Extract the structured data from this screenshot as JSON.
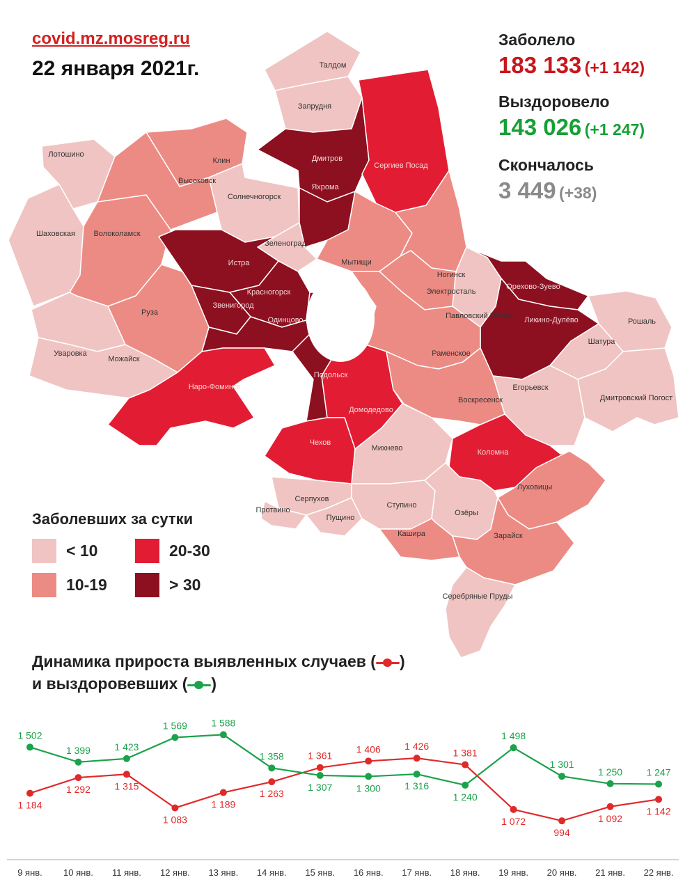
{
  "header": {
    "site": "covid.mz.mosreg.ru",
    "date": "22 января 2021г."
  },
  "stats": {
    "infected": {
      "label": "Заболело",
      "value": "183 133",
      "delta": "(+1 142)",
      "color": "#c8161d"
    },
    "recovered": {
      "label": "Выздоровело",
      "value": "143 026",
      "delta": "(+1 247)",
      "color": "#16a036"
    },
    "deaths": {
      "label": "Скончалось",
      "value": "3 449",
      "delta": "(+38)",
      "color": "#8a8a8a"
    }
  },
  "legend": {
    "title": "Заболевших за сутки",
    "items": [
      {
        "label": "< 10",
        "color": "#f0c4c2"
      },
      {
        "label": "10-19",
        "color": "#ec8b84"
      },
      {
        "label": "20-30",
        "color": "#e21d33"
      },
      {
        "label": "> 30",
        "color": "#8c1020"
      }
    ]
  },
  "map": {
    "colors": {
      "c1": "#f0c4c2",
      "c2": "#ec8b84",
      "c3": "#e21d33",
      "c4": "#8c1020"
    },
    "districts": [
      {
        "name": "Лотошино",
        "class": "c1"
      },
      {
        "name": "Шаховская",
        "class": "c1"
      },
      {
        "name": "Волоколамск",
        "class": "c2"
      },
      {
        "name": "Клин",
        "class": "c2"
      },
      {
        "name": "Высоковск",
        "class": "c2"
      },
      {
        "name": "Солнечногорск",
        "class": "c1"
      },
      {
        "name": "Талдом",
        "class": "c1"
      },
      {
        "name": "Запрудня",
        "class": "c1"
      },
      {
        "name": "Дмитров",
        "class": "c4"
      },
      {
        "name": "Яхрома",
        "class": "c4"
      },
      {
        "name": "Сергиев Посад",
        "class": "c3"
      },
      {
        "name": "Зеленоград",
        "class": "c1"
      },
      {
        "name": "Истра",
        "class": "c4"
      },
      {
        "name": "Красногорск",
        "class": "c4"
      },
      {
        "name": "Звенигород",
        "class": "c4"
      },
      {
        "name": "Одинцово",
        "class": "c4"
      },
      {
        "name": "Руза",
        "class": "c2"
      },
      {
        "name": "Уваровка",
        "class": "c1"
      },
      {
        "name": "Можайск",
        "class": "c1"
      },
      {
        "name": "Наро-Фоминск",
        "class": "c3"
      },
      {
        "name": "Мытищи",
        "class": "c2"
      },
      {
        "name": "Ногинск",
        "class": "c2"
      },
      {
        "name": "Электросталь",
        "class": "c2"
      },
      {
        "name": "Павловский Посад",
        "class": "c1"
      },
      {
        "name": "Орехово-Зуево",
        "class": "c4"
      },
      {
        "name": "Ликино-Дулёво",
        "class": "c4"
      },
      {
        "name": "Рошаль",
        "class": "c1"
      },
      {
        "name": "Шатура",
        "class": "c1"
      },
      {
        "name": "Раменское",
        "class": "c2"
      },
      {
        "name": "Егорьевск",
        "class": "c1"
      },
      {
        "name": "Дмитровский Погост",
        "class": "c1"
      },
      {
        "name": "Подольск",
        "class": "c4"
      },
      {
        "name": "Домодедово",
        "class": "c3"
      },
      {
        "name": "Воскресенск",
        "class": "c2"
      },
      {
        "name": "Чехов",
        "class": "c3"
      },
      {
        "name": "Михнево",
        "class": "c1"
      },
      {
        "name": "Коломна",
        "class": "c3"
      },
      {
        "name": "Луховицы",
        "class": "c2"
      },
      {
        "name": "Серпухов",
        "class": "c1"
      },
      {
        "name": "Протвино",
        "class": "c1"
      },
      {
        "name": "Пущино",
        "class": "c1"
      },
      {
        "name": "Ступино",
        "class": "c1"
      },
      {
        "name": "Озёры",
        "class": "c1"
      },
      {
        "name": "Кашира",
        "class": "c2"
      },
      {
        "name": "Зарайск",
        "class": "c2"
      },
      {
        "name": "Серебряные Пруды",
        "class": "c1"
      }
    ]
  },
  "dynamics": {
    "title_line1": "Динамика прироста выявленных случаев (",
    "title_line1_end": ")",
    "title_line2": "и выздоровевших (",
    "title_line2_end": ")"
  },
  "chart_data": {
    "type": "line",
    "title": "Динамика прироста выявленных случаев и выздоровевших",
    "categories": [
      "9 янв.",
      "10 янв.",
      "11 янв.",
      "12 янв.",
      "13 янв.",
      "14 янв.",
      "15 янв.",
      "16 янв.",
      "17 янв.",
      "18 янв.",
      "19 янв.",
      "20 янв.",
      "21 янв.",
      "22 янв."
    ],
    "series": [
      {
        "color": "#e02a2a",
        "values": [
          1184,
          1292,
          1315,
          1083,
          1189,
          1263,
          1361,
          1406,
          1426,
          1381,
          1072,
          994,
          1092,
          1142
        ],
        "labels": [
          "1 184",
          "1 292",
          "1 315",
          "1 083",
          "1 189",
          "1 263",
          "1 361",
          "1 406",
          "1 426",
          "1 381",
          "1 072",
          "994",
          "1 092",
          "1 142"
        ]
      },
      {
        "color": "#1ca24a",
        "values": [
          1502,
          1399,
          1423,
          1569,
          1588,
          1358,
          1307,
          1300,
          1316,
          1240,
          1498,
          1301,
          1250,
          1247
        ],
        "labels": [
          "1 502",
          "1 399",
          "1 423",
          "1 569",
          "1 588",
          "1 358",
          "1 307",
          "1 300",
          "1 316",
          "1 240",
          "1 498",
          "1 301",
          "1 250",
          "1 247"
        ]
      }
    ]
  }
}
